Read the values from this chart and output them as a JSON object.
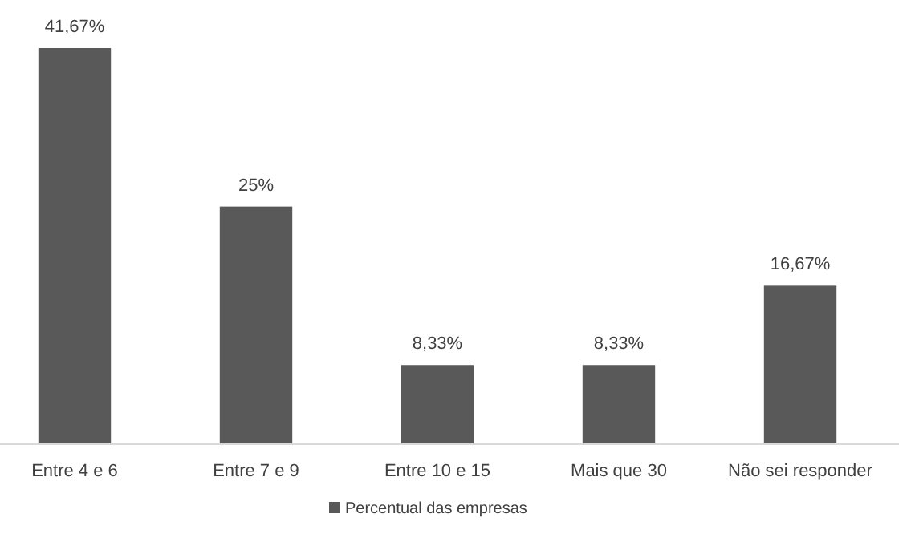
{
  "chart_data": {
    "type": "bar",
    "categories": [
      "Entre 4 e 6",
      "Entre 7 e 9",
      "Entre 10 e 15",
      "Mais que 30",
      "Não sei responder"
    ],
    "series": [
      {
        "name": "Percentual das empresas",
        "color": "#595959",
        "values": [
          41.67,
          25,
          8.33,
          8.33,
          16.67
        ],
        "value_labels": [
          "41,67%",
          "25%",
          "8,33%",
          "8,33%",
          "16,67%"
        ]
      }
    ],
    "legend": "bottom"
  }
}
